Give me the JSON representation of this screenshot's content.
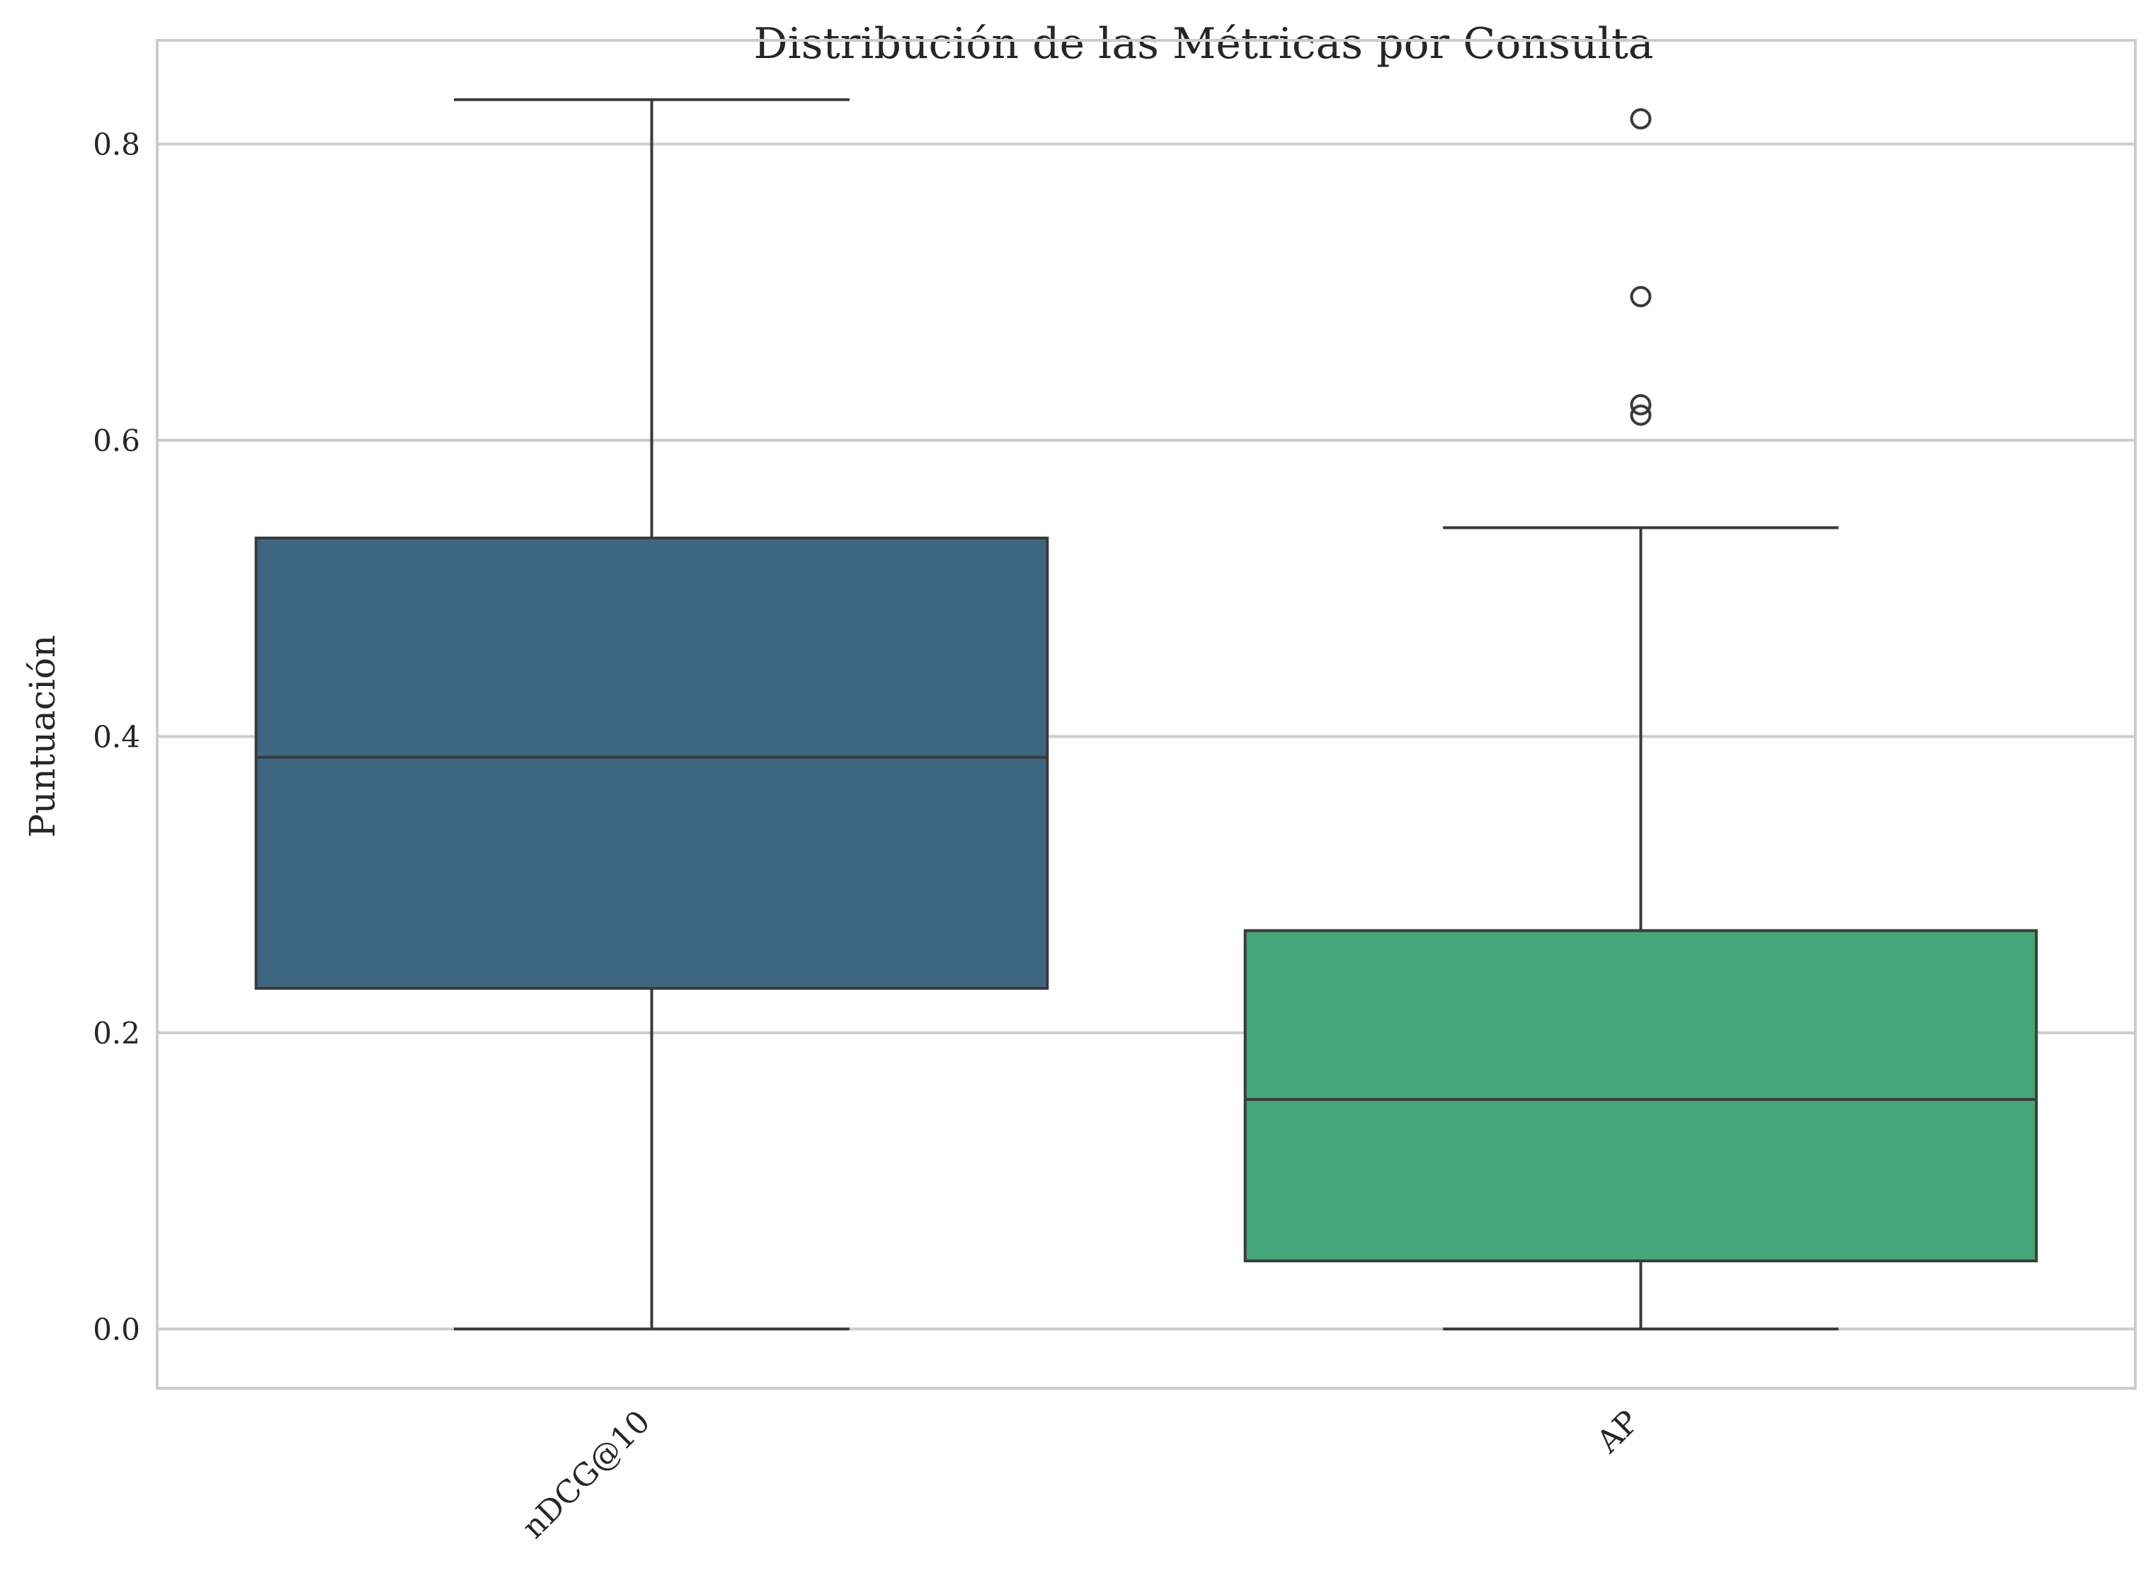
{
  "chart_data": {
    "type": "box",
    "title": "Distribución de las Métricas por Consulta",
    "xlabel": "",
    "ylabel": "Puntuación",
    "ylim": [
      -0.04,
      0.87
    ],
    "yticks": [
      "0.0",
      "0.2",
      "0.4",
      "0.6",
      "0.8"
    ],
    "ytick_values": [
      0.0,
      0.2,
      0.4,
      0.6,
      0.8
    ],
    "grid": true,
    "categories": [
      "nDCG@10",
      "AP"
    ],
    "boxes": [
      {
        "category": "nDCG@10",
        "whisker_low": 0.0,
        "q1": 0.23,
        "median": 0.386,
        "q3": 0.534,
        "whisker_high": 0.83,
        "outliers": [],
        "color": "#3e6680"
      },
      {
        "category": "AP",
        "whisker_low": 0.0,
        "q1": 0.046,
        "median": 0.155,
        "q3": 0.269,
        "whisker_high": 0.541,
        "outliers": [
          0.817,
          0.697,
          0.624,
          0.617
        ],
        "color": "#45a778"
      }
    ]
  }
}
